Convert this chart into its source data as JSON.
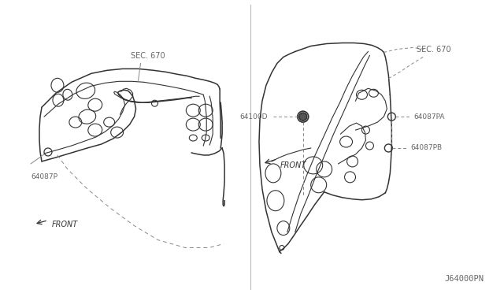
{
  "background_color": "#ffffff",
  "line_color": "#333333",
  "label_color": "#666666",
  "dashed_color": "#888888",
  "figure_width": 6.4,
  "figure_height": 3.72,
  "dpi": 100,
  "bottom_right_label": "J64000PN",
  "left": {
    "sec_label": "SEC. 670",
    "part_label": "64087P",
    "front_text": "FRONT"
  },
  "right": {
    "sec_label": "SEC. 670",
    "part_64100D": "64100D",
    "part_64087PA": "64087PA",
    "part_64087PB": "64087PB",
    "front_text": "FRONT"
  }
}
